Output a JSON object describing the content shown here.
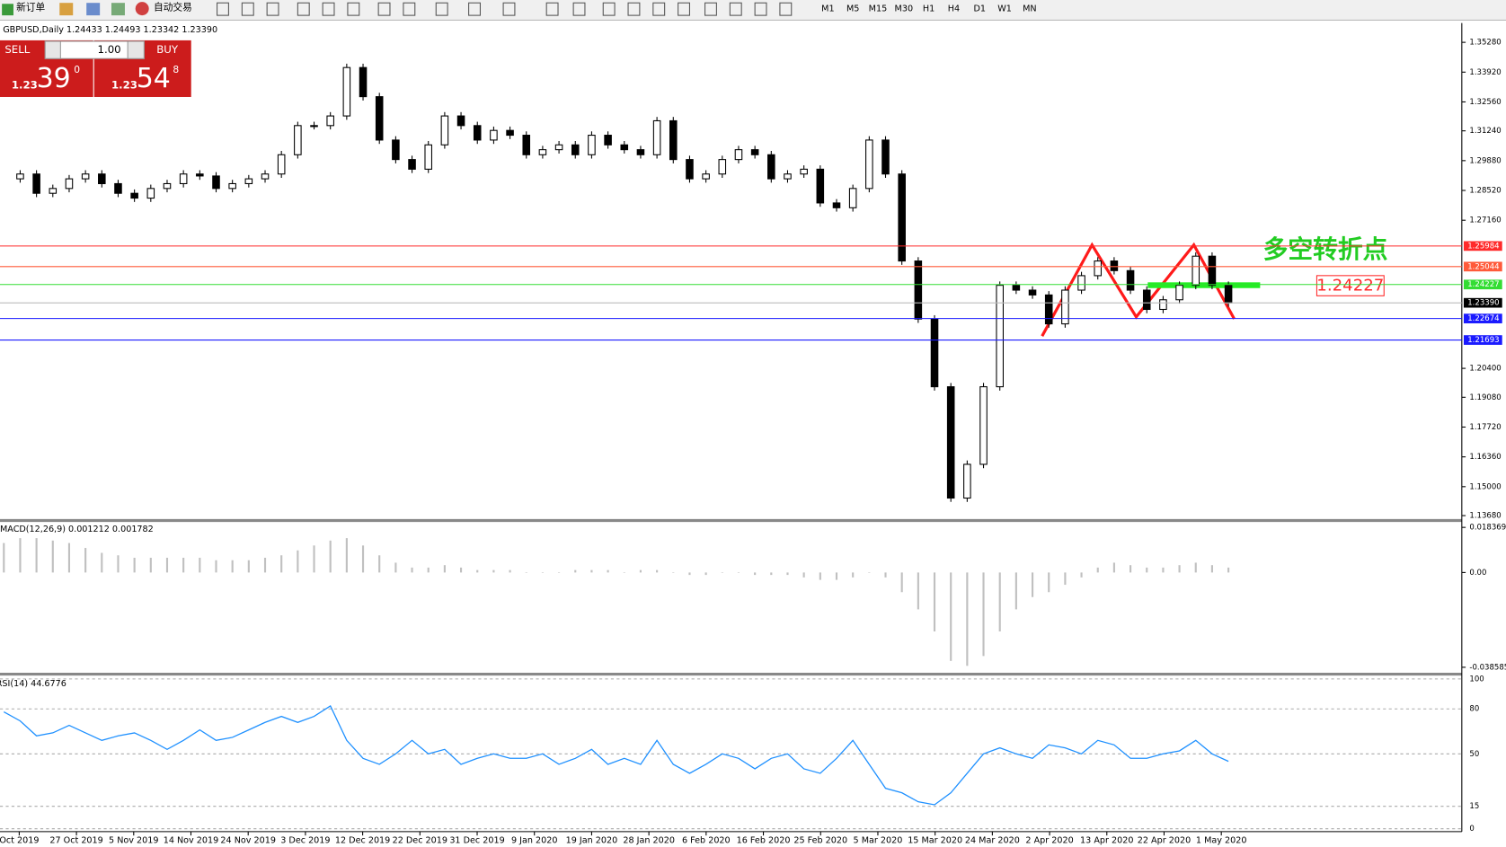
{
  "toolbar": {
    "new_order": "新订单",
    "auto_trading": "自动交易",
    "timeframes": [
      "M1",
      "M5",
      "M15",
      "M30",
      "H1",
      "H4",
      "D1",
      "W1",
      "MN"
    ]
  },
  "trade_panel": {
    "sell": "SELL",
    "buy": "BUY",
    "lot": "1.00",
    "sell_price": {
      "big": "1.23",
      "pips": "39",
      "frac": "0"
    },
    "buy_price": {
      "big": "1.23",
      "pips": "54",
      "frac": "8"
    }
  },
  "time_axis": {
    "labels": [
      "Oct 2019",
      "27 Oct 2019",
      "5 Nov 2019",
      "14 Nov 2019",
      "24 Nov 2019",
      "3 Dec 2019",
      "12 Dec 2019",
      "22 Dec 2019",
      "31 Dec 2019",
      "9 Jan 2020",
      "19 Jan 2020",
      "28 Jan 2020",
      "6 Feb 2020",
      "16 Feb 2020",
      "25 Feb 2020",
      "5 Mar 2020",
      "15 Mar 2020",
      "24 Mar 2020",
      "2 Apr 2020",
      "13 Apr 2020",
      "22 Apr 2020",
      "1 May 2020"
    ]
  },
  "chart_data": [
    {
      "type": "candlestick",
      "title": "GBPUSD,Daily 1.24433 1.24493 1.23342 1.23390",
      "close": [
        1.2905,
        1.2927,
        1.2839,
        1.2861,
        1.2905,
        1.2927,
        1.2883,
        1.2839,
        1.2817,
        1.2861,
        1.2883,
        1.2927,
        1.2918,
        1.2861,
        1.2883,
        1.2905,
        1.2927,
        1.3015,
        1.3148,
        1.3148,
        1.3192,
        1.3413,
        1.328,
        1.3082,
        1.2993,
        1.2949,
        1.306,
        1.3192,
        1.3148,
        1.3082,
        1.3126,
        1.3104,
        1.3015,
        1.3038,
        1.306,
        1.3015,
        1.3104,
        1.306,
        1.3038,
        1.3015,
        1.317,
        1.2993,
        1.2905,
        1.2927,
        1.2993,
        1.3038,
        1.3015,
        1.2905,
        1.2927,
        1.2949,
        1.2795,
        1.2773,
        1.2861,
        1.3082,
        1.2927,
        1.253,
        1.2265,
        1.1956,
        1.1448,
        1.1602,
        1.1956,
        1.2419,
        1.2397,
        1.2375,
        1.2243,
        1.2397,
        1.2463,
        1.253,
        1.2486,
        1.2397,
        1.2309,
        1.2353,
        1.2419,
        1.2552,
        1.2419,
        1.2339
      ],
      "ylim": [
        1.135,
        1.3616
      ],
      "yticks": [
        {
          "value": 1.3528,
          "label": "1.35280"
        },
        {
          "value": 1.3392,
          "label": "1.33920"
        },
        {
          "value": 1.3256,
          "label": "1.32560"
        },
        {
          "value": 1.3124,
          "label": "1.31240"
        },
        {
          "value": 1.2988,
          "label": "1.29880"
        },
        {
          "value": 1.2852,
          "label": "1.28520"
        },
        {
          "value": 1.2716,
          "label": "1.27160"
        },
        {
          "value": 1.204,
          "label": "1.20400"
        },
        {
          "value": 1.1908,
          "label": "1.19080"
        },
        {
          "value": 1.1772,
          "label": "1.17720"
        },
        {
          "value": 1.1636,
          "label": "1.16360"
        },
        {
          "value": 1.15,
          "label": "1.15000"
        },
        {
          "value": 1.1368,
          "label": "1.13680"
        }
      ],
      "levels": [
        {
          "value": 1.25984,
          "color": "#ff2a2a"
        },
        {
          "value": 1.25044,
          "color": "#ff5a3a"
        },
        {
          "value": 1.24227,
          "color": "#33dd33"
        },
        {
          "value": {
            "value": 1.2339,
            "label": "1.23390"
          },
          "color": "#000000"
        },
        {
          "value": 1.22674,
          "color": "#1a1aff"
        },
        {
          "value": 1.21693,
          "color": "#1a1aff"
        }
      ],
      "annotation": "多空转折点",
      "level_note": 1.24227
    },
    {
      "type": "histogram",
      "title": "MACD(12,26,9) 0.001212 0.001782",
      "values": [
        0.012,
        0.014,
        0.014,
        0.013,
        0.012,
        0.01,
        0.008,
        0.007,
        0.006,
        0.006,
        0.006,
        0.006,
        0.006,
        0.005,
        0.005,
        0.005,
        0.006,
        0.007,
        0.009,
        0.011,
        0.013,
        0.014,
        0.011,
        0.007,
        0.004,
        0.002,
        0.002,
        0.003,
        0.002,
        0.001,
        0.001,
        0.001,
        0,
        0,
        0,
        0.001,
        0.001,
        0.001,
        0,
        0.001,
        0.001,
        0,
        -0.001,
        -0.001,
        0,
        0,
        -0.001,
        -0.001,
        -0.001,
        -0.002,
        -0.003,
        -0.003,
        -0.002,
        0,
        -0.002,
        -0.008,
        -0.015,
        -0.024,
        -0.036,
        -0.038,
        -0.034,
        -0.024,
        -0.015,
        -0.01,
        -0.008,
        -0.005,
        -0.002,
        0.002,
        0.004,
        0.003,
        0.002,
        0.002,
        0.003,
        0.004,
        0.003,
        0.002
      ],
      "color": "#c0c0c0",
      "ylim": [
        -0.0406,
        0.02
      ],
      "yticks": [
        0.018369,
        {
          "value": 0,
          "label": "0.00"
        },
        -0.038585
      ]
    },
    {
      "type": "line",
      "title": "RSI(14) 44.6776",
      "values": [
        78,
        72,
        62,
        64,
        69,
        64,
        59,
        62,
        64,
        59,
        53,
        59,
        66,
        59,
        61,
        66,
        71,
        75,
        71,
        75,
        82,
        59,
        47,
        43,
        50,
        59,
        50,
        53,
        43,
        47,
        50,
        47,
        47,
        50,
        43,
        47,
        53,
        43,
        47,
        43,
        59,
        43,
        37,
        43,
        50,
        47,
        40,
        47,
        50,
        40,
        37,
        47,
        59,
        43,
        27,
        24,
        18,
        16,
        24,
        37,
        50,
        54,
        50,
        47,
        56,
        54,
        50,
        59,
        56,
        47,
        47,
        50,
        52,
        59,
        50,
        45
      ],
      "color": "#1e90ff",
      "ylim": [
        0,
        100
      ],
      "yticks": [
        100,
        80,
        50,
        15,
        0
      ]
    }
  ]
}
